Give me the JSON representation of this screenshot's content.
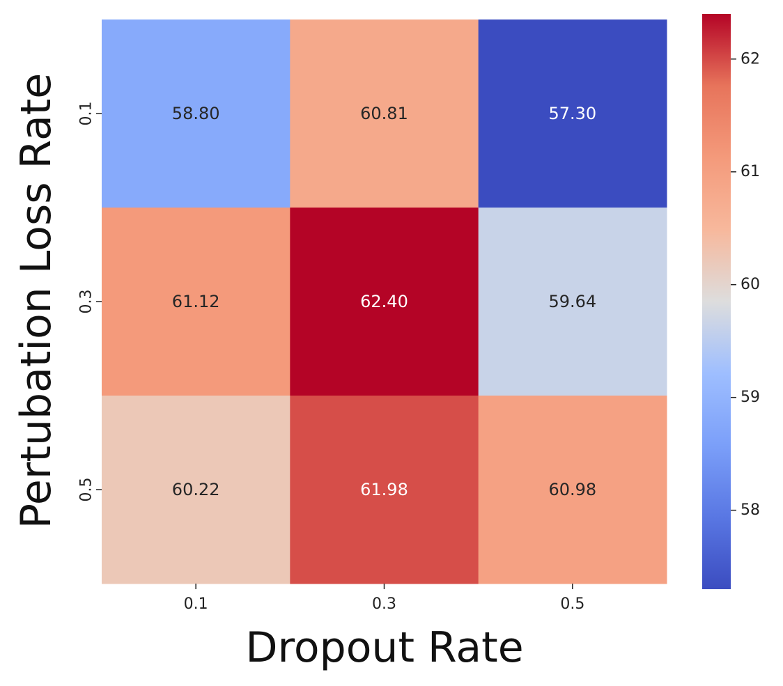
{
  "chart_data": {
    "type": "heatmap",
    "title": "",
    "xlabel": "Dropout Rate",
    "ylabel": "Pertubation Loss Rate",
    "x_categories": [
      "0.1",
      "0.3",
      "0.5"
    ],
    "y_categories": [
      "0.1",
      "0.3",
      "0.5"
    ],
    "values": [
      [
        58.8,
        60.81,
        57.3
      ],
      [
        61.12,
        62.4,
        59.64
      ],
      [
        60.22,
        61.98,
        60.98
      ]
    ],
    "value_labels": [
      [
        "58.80",
        "60.81",
        "57.30"
      ],
      [
        "61.12",
        "62.40",
        "59.64"
      ],
      [
        "60.22",
        "61.98",
        "60.98"
      ]
    ],
    "colormap": "coolwarm",
    "colorbar": {
      "vmin": 57.3,
      "vmax": 62.4,
      "ticks": [
        58,
        59,
        60,
        61,
        62
      ],
      "tick_labels": [
        "58",
        "59",
        "60",
        "61",
        "62"
      ]
    },
    "colors": {
      "low": "#3b4cc0",
      "mid": "#dddddd",
      "high": "#b40426",
      "text_dark": "#262626",
      "text_light": "#ffffff"
    }
  }
}
